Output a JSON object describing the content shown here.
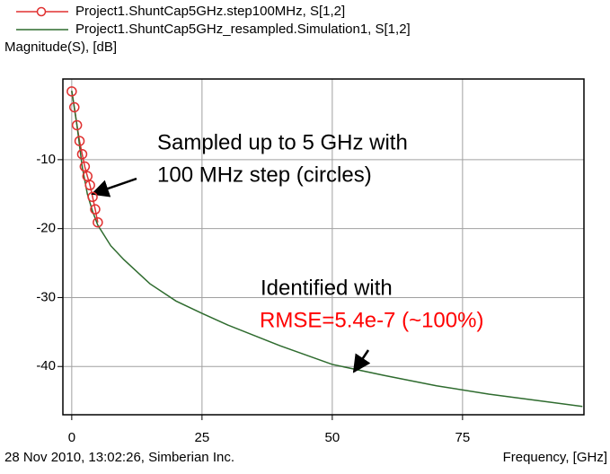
{
  "chart_data": {
    "type": "line",
    "legend": "top",
    "y_label": "Magnitude(S), [dB]",
    "x_label": "Frequency, [GHz]",
    "footer": "28 Nov 2010, 13:02:26, Simberian Inc.",
    "annotations": [
      {
        "lines": [
          "Sampled up to 5 GHz with",
          "100 MHz step (circles)"
        ],
        "color": "#000000"
      },
      {
        "lines": [
          "Identified with",
          "RMSE=5.4e-7 (~100%)"
        ],
        "color": "#000000",
        "second_color": "#ff0000"
      }
    ],
    "series": [
      {
        "name": "Project1.ShuntCap5GHz.step100MHz, S[1,2]",
        "color": "#e03030",
        "marker": "circle",
        "x": [
          0,
          0.5,
          1,
          1.5,
          2,
          2.5,
          3,
          3.5,
          4,
          4.5,
          5
        ],
        "values": [
          -0.1,
          -2.4,
          -5,
          -7.3,
          -9.2,
          -11,
          -12.4,
          -13.7,
          -15.4,
          -17.2,
          -19.1
        ]
      },
      {
        "name": "Project1.ShuntCap5GHz_resampled.Simulation1, S[1,2]",
        "color": "#2e6b2e",
        "marker": "none",
        "x": [
          0,
          1,
          2,
          3,
          4,
          5,
          7.5,
          10,
          15,
          20,
          25,
          30,
          40,
          50,
          60,
          70,
          80,
          90,
          98
        ],
        "values": [
          0,
          -5,
          -11,
          -15,
          -17.5,
          -19.5,
          -22.5,
          -24.5,
          -28,
          -30.5,
          -32.3,
          -34,
          -37,
          -39.7,
          -41.3,
          -42.8,
          -44,
          -45,
          -45.8
        ]
      }
    ],
    "xlim": [
      -1.7,
      98.3
    ],
    "xticks": [
      0,
      25,
      50,
      75
    ],
    "ylim": [
      -47,
      1.7
    ],
    "yticks": [
      -10,
      -20,
      -30,
      -40
    ],
    "grid": true
  }
}
